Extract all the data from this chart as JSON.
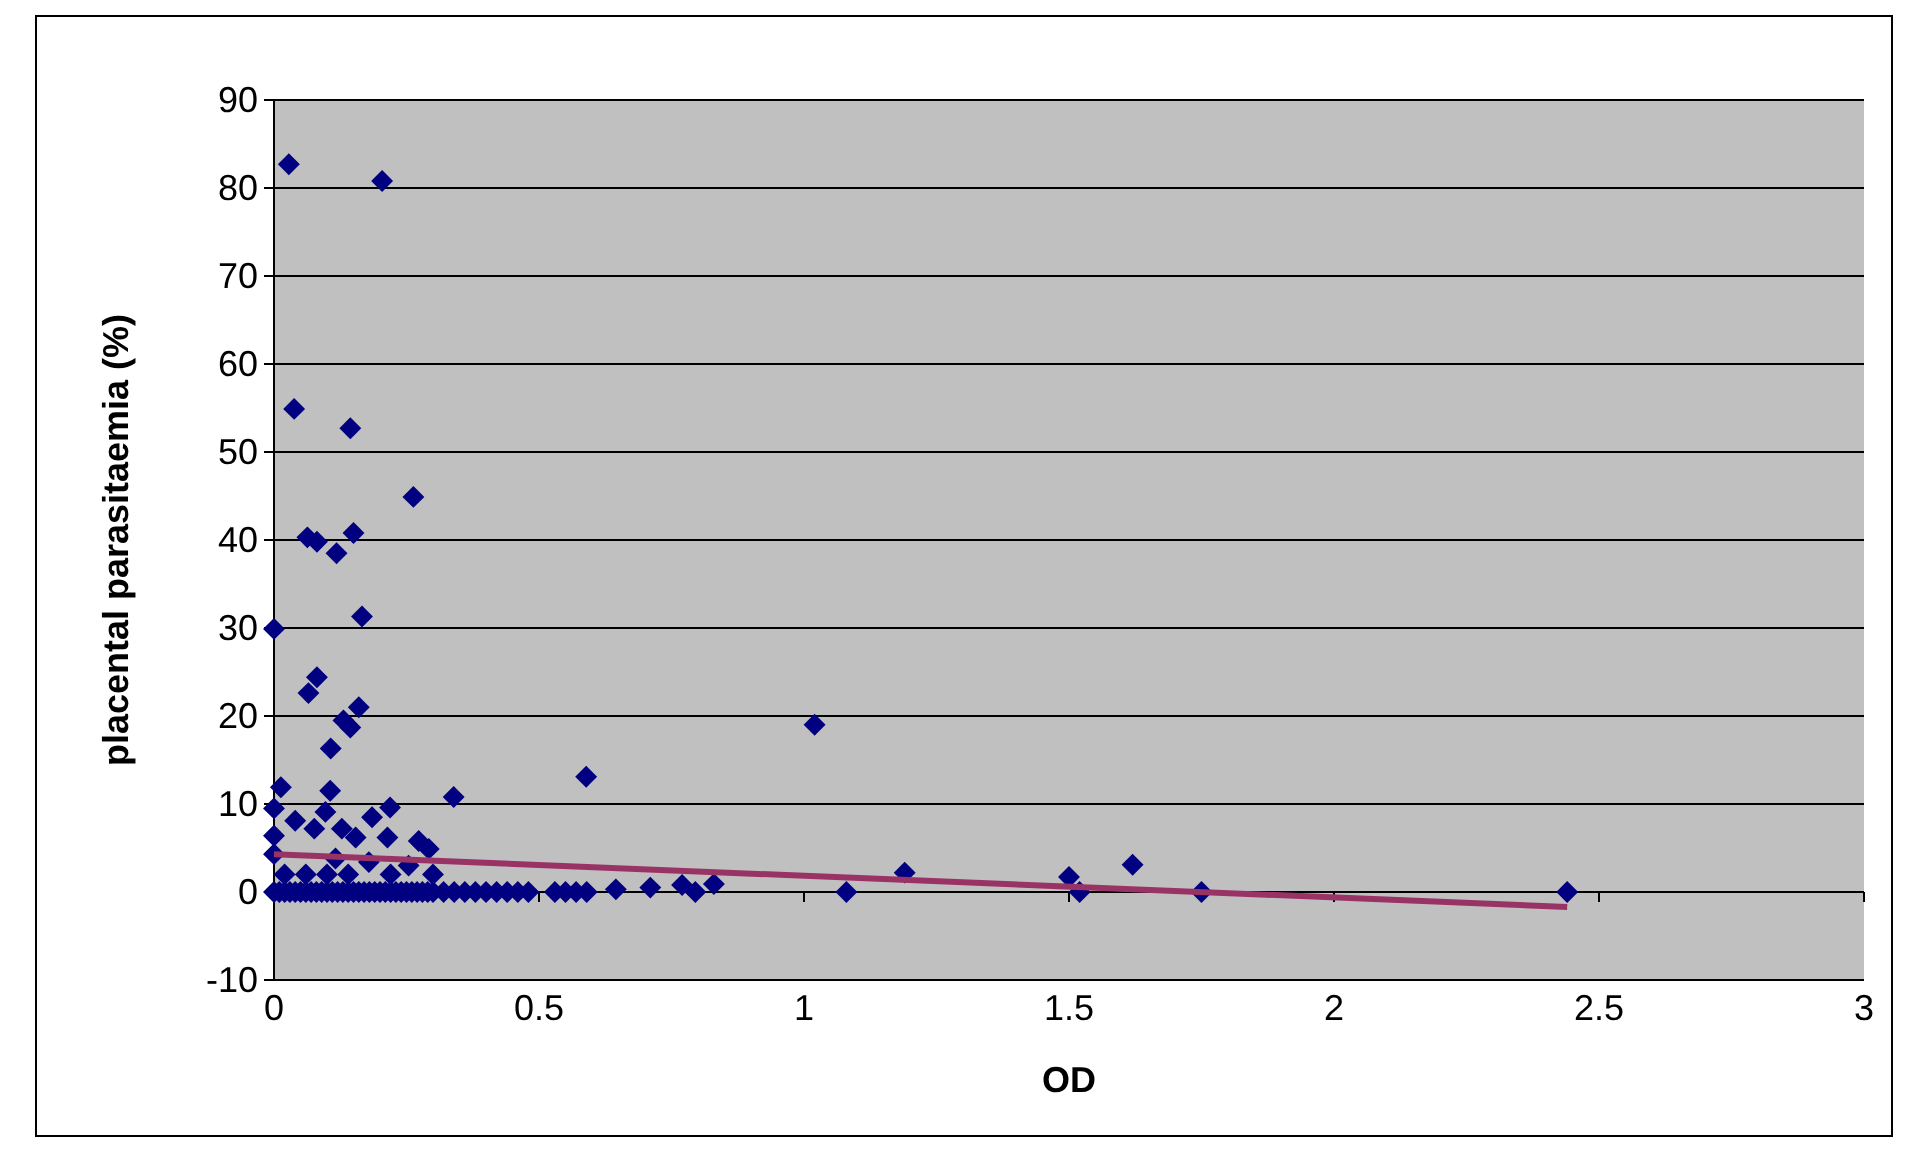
{
  "chart_data": {
    "type": "scatter",
    "xlabel": "OD",
    "ylabel": "placental parasitaemia (%)",
    "xlim": [
      0,
      3
    ],
    "xticks": [
      0,
      0.5,
      1,
      1.5,
      2,
      2.5,
      3
    ],
    "ylim": [
      -10,
      90
    ],
    "yticks": [
      -10,
      0,
      10,
      20,
      30,
      40,
      50,
      60,
      70,
      80,
      90
    ],
    "grid": "y",
    "marker": "diamond",
    "series": [
      {
        "color": "#000080",
        "x": [
          0.028,
          0.204,
          0.038,
          0.144,
          0.263,
          0.063,
          0.081,
          0.15,
          0.118,
          0,
          0.166,
          0.081,
          0.065,
          0.131,
          0.16,
          0.144,
          0.107,
          0.589,
          1.02,
          0.013,
          0.106,
          0.339,
          0,
          0.219,
          0.185,
          0.04,
          0.076,
          0.097,
          0.128,
          0.154,
          0,
          0.214,
          0.273,
          0.292,
          0,
          0.116,
          0.179,
          0.254,
          1.19,
          1.5,
          1.62,
          0.645,
          0.71,
          0.77,
          0.83,
          0,
          0.01,
          0.02,
          0.03,
          0.04,
          0.05,
          0.06,
          0.07,
          0.08,
          0.09,
          0.1,
          0.11,
          0.12,
          0.13,
          0.14,
          0.15,
          0.16,
          0.17,
          0.18,
          0.19,
          0.2,
          0.21,
          0.22,
          0.23,
          0.24,
          0.25,
          0.26,
          0.27,
          0.28,
          0.29,
          0.3,
          0.32,
          0.34,
          0.36,
          0.38,
          0.4,
          0.42,
          0.44,
          0.46,
          0.48,
          0.53,
          0.55,
          0.57,
          0.59,
          0.795,
          1.08,
          1.52,
          1.75,
          2.44,
          0.02,
          0.06,
          0.1,
          0.14,
          0.22,
          0.3
        ],
        "values": [
          82.7,
          80.8,
          54.9,
          52.7,
          44.9,
          40.3,
          39.8,
          40.8,
          38.5,
          29.9,
          31.3,
          24.4,
          22.6,
          19.5,
          21.0,
          18.7,
          16.3,
          13.1,
          19.0,
          11.9,
          11.5,
          10.8,
          9.5,
          9.6,
          8.5,
          8.1,
          7.2,
          9.1,
          7.2,
          6.2,
          6.4,
          6.2,
          5.8,
          4.9,
          4.3,
          3.8,
          3.4,
          3.0,
          2.2,
          1.7,
          3.1,
          0.3,
          0.5,
          0.8,
          0.9,
          0,
          0,
          0,
          0,
          0,
          0,
          0,
          0,
          0,
          0,
          0,
          0,
          0,
          0,
          0,
          0,
          0,
          0,
          0,
          0,
          0,
          0,
          0,
          0,
          0,
          0,
          0,
          0,
          0,
          0,
          0,
          0,
          0,
          0,
          0,
          0,
          0,
          0,
          0,
          0,
          0,
          0,
          0,
          0,
          0,
          0,
          0,
          0,
          0,
          2,
          2,
          2,
          2,
          2,
          2
        ]
      },
      {
        "type": "line",
        "marker": "none",
        "color": "#993366",
        "x": [
          0,
          2.44
        ],
        "values": [
          4.3,
          -1.7
        ]
      }
    ]
  }
}
